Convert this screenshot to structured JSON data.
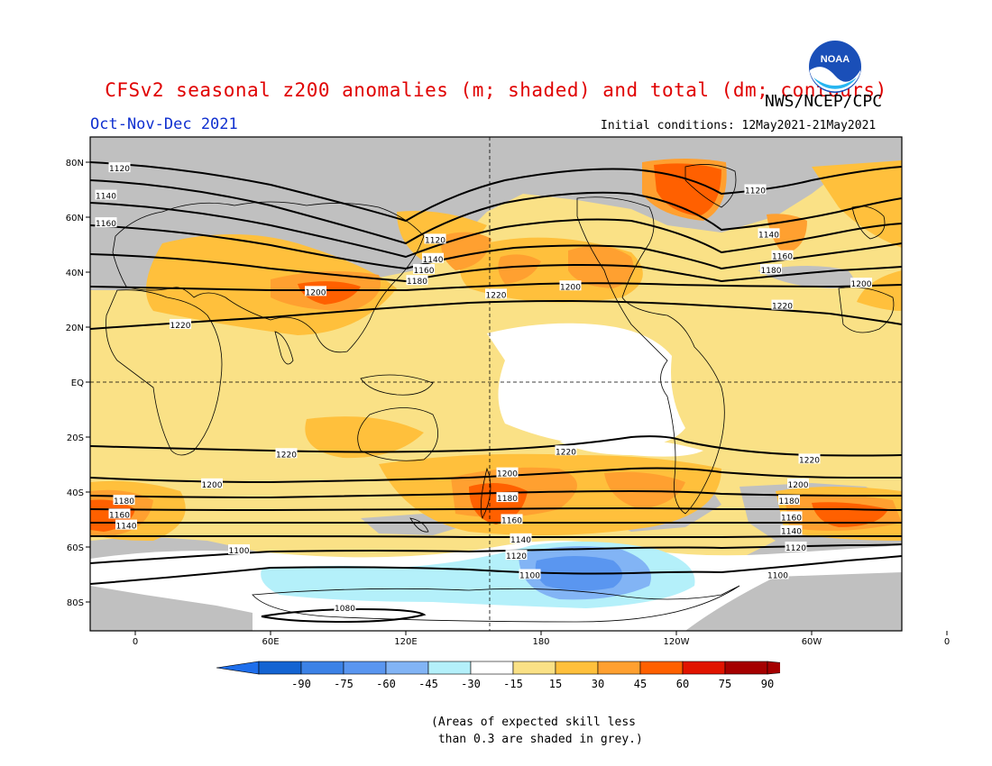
{
  "header": {
    "title": "CFSv2 seasonal z200 anomalies (m; shaded) and total (dm; contours)",
    "agency": "NWS/NCEP/CPC",
    "period": "Oct-Nov-Dec 2021",
    "initial_conditions": "Initial conditions: 12May2021-21May2021",
    "logo_text": "NOAA"
  },
  "map": {
    "lat_labels": [
      "80N",
      "60N",
      "40N",
      "20N",
      "EQ",
      "20S",
      "40S",
      "60S",
      "80S"
    ],
    "lon_labels": [
      "0",
      "60E",
      "120E",
      "180",
      "120W",
      "60W",
      "0"
    ],
    "contour_labels": [
      {
        "text": "1120",
        "lon": -7,
        "lat": 78
      },
      {
        "text": "1140",
        "lon": -13,
        "lat": 68
      },
      {
        "text": "1160",
        "lon": -13,
        "lat": 58
      },
      {
        "text": "1120",
        "lon": 133,
        "lat": 52
      },
      {
        "text": "1140",
        "lon": 132,
        "lat": 45
      },
      {
        "text": "1160",
        "lon": 128,
        "lat": 41
      },
      {
        "text": "1180",
        "lon": 125,
        "lat": 37
      },
      {
        "text": "1200",
        "lon": 80,
        "lat": 33
      },
      {
        "text": "1220",
        "lon": 160,
        "lat": 32
      },
      {
        "text": "1200",
        "lon": 193,
        "lat": 35
      },
      {
        "text": "1220",
        "lon": 20,
        "lat": 21
      },
      {
        "text": "1120",
        "lon": 275,
        "lat": 70
      },
      {
        "text": "1140",
        "lon": 281,
        "lat": 54
      },
      {
        "text": "1160",
        "lon": 287,
        "lat": 46
      },
      {
        "text": "1180",
        "lon": 282,
        "lat": 41
      },
      {
        "text": "1200",
        "lon": 322,
        "lat": 36
      },
      {
        "text": "1220",
        "lon": 287,
        "lat": 28
      },
      {
        "text": "1220",
        "lon": 67,
        "lat": -26
      },
      {
        "text": "1220",
        "lon": 191,
        "lat": -25
      },
      {
        "text": "1220",
        "lon": 299,
        "lat": -28
      },
      {
        "text": "1200",
        "lon": 34,
        "lat": -37
      },
      {
        "text": "1200",
        "lon": 165,
        "lat": -33
      },
      {
        "text": "1200",
        "lon": 294,
        "lat": -37
      },
      {
        "text": "1180",
        "lon": -5,
        "lat": -43
      },
      {
        "text": "1160",
        "lon": -7,
        "lat": -48
      },
      {
        "text": "1140",
        "lon": -4,
        "lat": -52
      },
      {
        "text": "1180",
        "lon": 165,
        "lat": -42
      },
      {
        "text": "1160",
        "lon": 167,
        "lat": -50
      },
      {
        "text": "1180",
        "lon": 290,
        "lat": -43
      },
      {
        "text": "1160",
        "lon": 291,
        "lat": -49
      },
      {
        "text": "1140",
        "lon": 291,
        "lat": -54
      },
      {
        "text": "1120",
        "lon": 293,
        "lat": -60
      },
      {
        "text": "1100",
        "lon": 285,
        "lat": -70
      },
      {
        "text": "1100",
        "lon": 46,
        "lat": -61
      },
      {
        "text": "1120",
        "lon": 169,
        "lat": -63
      },
      {
        "text": "1140",
        "lon": 171,
        "lat": -57
      },
      {
        "text": "1100",
        "lon": 175,
        "lat": -70
      },
      {
        "text": "1080",
        "lon": 93,
        "lat": -82
      }
    ]
  },
  "colorbar": {
    "labels": [
      "-90",
      "-75",
      "-60",
      "-45",
      "-30",
      "-15",
      "15",
      "30",
      "45",
      "60",
      "75",
      "90"
    ],
    "colors": [
      "#1464d2",
      "#3c82e6",
      "#5a96f0",
      "#82b4f5",
      "#b4f0fa",
      "#ffffff",
      "#fae186",
      "#ffc03c",
      "#ffa030",
      "#ff6000",
      "#e11400",
      "#a50000"
    ],
    "low_arrow_color": "#1e6eeb",
    "high_arrow_color": "#a50000"
  },
  "note": "(Areas of expected skill less\n than 0.3 are shaded in grey.)",
  "colors": {
    "title": "#e00000",
    "period": "#1030d0",
    "grey_skill": "#c0c0c0"
  }
}
